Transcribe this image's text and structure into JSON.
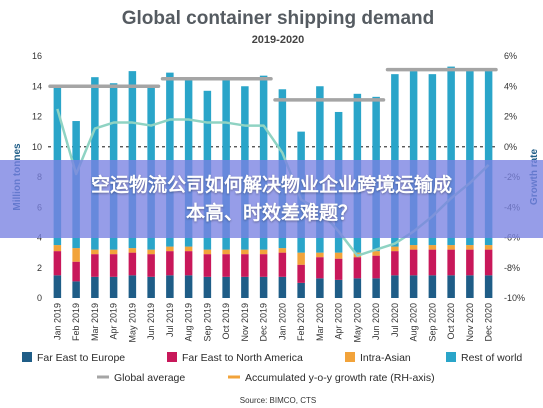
{
  "chart_data": {
    "type": "bar",
    "title": "Global container shipping demand",
    "subtitle": "2019-2020",
    "ylabel": "Million tonnes",
    "y2label": "Growth rate",
    "ylim": [
      0,
      16
    ],
    "y2lim": [
      -10,
      6
    ],
    "yticks": [
      "0",
      "2",
      "4",
      "6",
      "8",
      "10",
      "12",
      "14",
      "16"
    ],
    "y2ticks": [
      "-10%",
      "-8%",
      "-6%",
      "-4%",
      "-2%",
      "0%",
      "2%",
      "4%",
      "6%"
    ],
    "categories": [
      "Jan 2019",
      "Feb 2019",
      "Mar 2019",
      "Apr 2019",
      "May 2019",
      "Jun 2019",
      "Jul 2019",
      "Aug 2019",
      "Sep 2019",
      "Oct 2019",
      "Nov 2019",
      "Dec 2019",
      "Jan 2020",
      "Feb 2020",
      "Mar 2020",
      "Apr 2020",
      "May 2020",
      "Jun 2020",
      "Jul 2020",
      "Aug 2020",
      "Sep 2020",
      "Oct 2020",
      "Nov 2020",
      "Dec 2020"
    ],
    "series": [
      {
        "name": "Far East to Europe",
        "color": "#1f5d87",
        "values": [
          1.5,
          1.1,
          1.4,
          1.4,
          1.5,
          1.4,
          1.5,
          1.5,
          1.4,
          1.4,
          1.4,
          1.4,
          1.4,
          1.0,
          1.3,
          1.2,
          1.3,
          1.3,
          1.5,
          1.5,
          1.5,
          1.5,
          1.5,
          1.5
        ]
      },
      {
        "name": "Far East to North America",
        "color": "#c8185a",
        "values": [
          1.6,
          1.3,
          1.5,
          1.5,
          1.5,
          1.5,
          1.6,
          1.6,
          1.5,
          1.5,
          1.5,
          1.5,
          1.6,
          1.2,
          1.4,
          1.4,
          1.4,
          1.5,
          1.6,
          1.7,
          1.7,
          1.7,
          1.7,
          1.7
        ]
      },
      {
        "name": "Intra-Asian",
        "color": "#f2a33a",
        "values": [
          0.4,
          0.9,
          0.3,
          0.3,
          0.3,
          0.3,
          0.3,
          0.3,
          0.3,
          0.3,
          0.3,
          0.3,
          0.3,
          0.8,
          0.3,
          0.4,
          0.3,
          0.3,
          0.3,
          0.3,
          0.3,
          0.3,
          0.3,
          0.3
        ]
      },
      {
        "name": "Rest of world",
        "color": "#2aa5c9",
        "values": [
          10.4,
          8.4,
          11.4,
          11.0,
          11.7,
          10.8,
          11.5,
          11.2,
          10.5,
          11.3,
          10.8,
          11.5,
          10.5,
          8.0,
          11.0,
          9.3,
          10.5,
          10.2,
          11.4,
          11.5,
          11.3,
          11.8,
          11.6,
          11.7
        ]
      }
    ],
    "line_series": [
      {
        "name": "Global average",
        "color": "#a5a5a5",
        "axis": "left",
        "segments": [
          {
            "from": 0,
            "to": 5,
            "value": 14.0
          },
          {
            "from": 6,
            "to": 11,
            "value": 14.5
          },
          {
            "from": 12,
            "to": 17,
            "value": 13.1
          },
          {
            "from": 18,
            "to": 23,
            "value": 15.1
          }
        ]
      },
      {
        "name": "Accumulated y-o-y growth rate (RH-axis)",
        "color": "#8fd3c3",
        "axis": "right",
        "values": [
          2.5,
          -1.8,
          1.2,
          1.6,
          1.6,
          1.4,
          1.8,
          1.8,
          1.6,
          1.6,
          1.4,
          1.4,
          -0.4,
          -3.5,
          -4.2,
          -5.6,
          -7.2,
          -6.8,
          -6.4,
          -5.6,
          -4.6,
          -3.4,
          -2.4,
          -1.2
        ]
      }
    ],
    "source": "Source: BIMCO, CTS",
    "legend_position": "bottom",
    "grid": false
  },
  "overlay": {
    "line1": "空运物流公司如何解决物业企业跨境运输成",
    "line2": "本高、时效差难题？"
  }
}
